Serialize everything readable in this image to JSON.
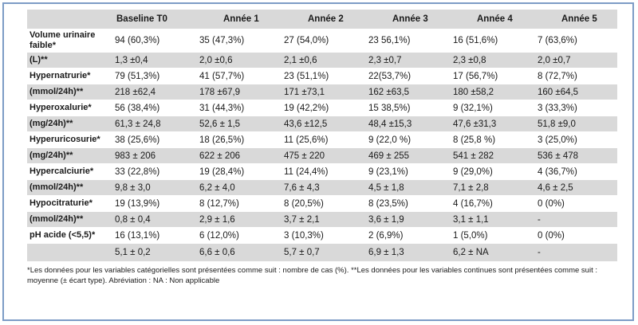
{
  "table": {
    "headers": [
      "",
      "Baseline T0",
      "Année 1",
      "Année 2",
      "Année 3",
      "Année 4",
      "Année 5"
    ],
    "rows": [
      {
        "label": "Volume urinaire faible*",
        "cells": [
          "94 (60,3%)",
          "35 (47,3%)",
          "27 (54,0%)",
          "23 56,1%)",
          "16 (51,6%)",
          "7 (63,6%)"
        ]
      },
      {
        "label": "(L)**",
        "cells": [
          "1,3 ±0,4",
          "2,0 ±0,6",
          "2,1 ±0,6",
          "2,3 ±0,7",
          "2,3 ±0,8",
          "2,0 ±0,7"
        ]
      },
      {
        "label": "Hypernatrurie*",
        "cells": [
          "79 (51,3%)",
          "41 (57,7%)",
          "23 (51,1%)",
          "22(53,7%)",
          "17 (56,7%)",
          "8 (72,7%)"
        ]
      },
      {
        "label": "(mmol/24h)**",
        "cells": [
          "218 ±62,4",
          "178 ±67,9",
          "171 ±73,1",
          "162 ±63,5",
          "180 ±58,2",
          "160 ±64,5"
        ]
      },
      {
        "label": "Hyperoxalurie*",
        "cells": [
          "56 (38,4%)",
          "31 (44,3%)",
          "19 (42,2%)",
          "15 38,5%)",
          "9 (32,1%)",
          "3 (33,3%)"
        ]
      },
      {
        "label": "(mg/24h)**",
        "cells": [
          "61,3 ± 24,8",
          "52,6 ± 1,5",
          "43,6 ±12,5",
          "48,4 ±15,3",
          "47,6 ±31,3",
          "51,8 ±9,0"
        ]
      },
      {
        "label": "Hyperuricosurie*",
        "cells": [
          "38 (25,6%)",
          "18 (26,5%)",
          "11 (25,6%)",
          "9 (22,0 %)",
          "8 (25,8 %)",
          "3 (25,0%)"
        ]
      },
      {
        "label": "(mg/24h)**",
        "cells": [
          "983 ± 206",
          "622 ± 206",
          "475 ± 220",
          "469 ± 255",
          "541 ± 282",
          "536 ± 478"
        ]
      },
      {
        "label": "Hypercalciurie*",
        "cells": [
          "33 (22,8%)",
          "19 (28,4%)",
          "11 (24,4%)",
          "9 (23,1%)",
          "9 (29,0%)",
          "4 (36,7%)"
        ]
      },
      {
        "label": "(mmol/24h)**",
        "cells": [
          "9,8 ± 3,0",
          "6,2 ± 4,0",
          "7,6 ± 4,3",
          "4,5 ± 1,8",
          "7,1 ± 2,8",
          "4,6 ± 2,5"
        ]
      },
      {
        "label": "Hypocitraturie*",
        "cells": [
          "19 (13,9%)",
          "8 (12,7%)",
          "8 (20,5%)",
          "8 (23,5%)",
          "4 (16,7%)",
          "0 (0%)"
        ]
      },
      {
        "label": "(mmol/24h)**",
        "cells": [
          "0,8 ± 0,4",
          "2,9 ± 1,6",
          "3,7 ± 2,1",
          "3,6 ± 1,9",
          "3,1 ± 1,1",
          "-"
        ]
      },
      {
        "label": "pH acide (<5,5)*",
        "cells": [
          "16 (13,1%)",
          "6 (12,0%)",
          "3 (10,3%)",
          "2 (6,9%)",
          "1 (5,0%)",
          "0 (0%)"
        ]
      },
      {
        "label": "",
        "cells": [
          "5,1 ± 0,2",
          "6,6 ± 0,6",
          "5,7 ± 0,7",
          "6,9 ± 1,3",
          "6,2 ± NA",
          "-"
        ]
      }
    ]
  },
  "footnote": "*Les données pour les variables catégorielles sont présentées comme suit : nombre de cas (%). **Les données pour les variables continues sont présentées comme suit : moyenne (± écart type). Abréviation : NA : Non applicable"
}
